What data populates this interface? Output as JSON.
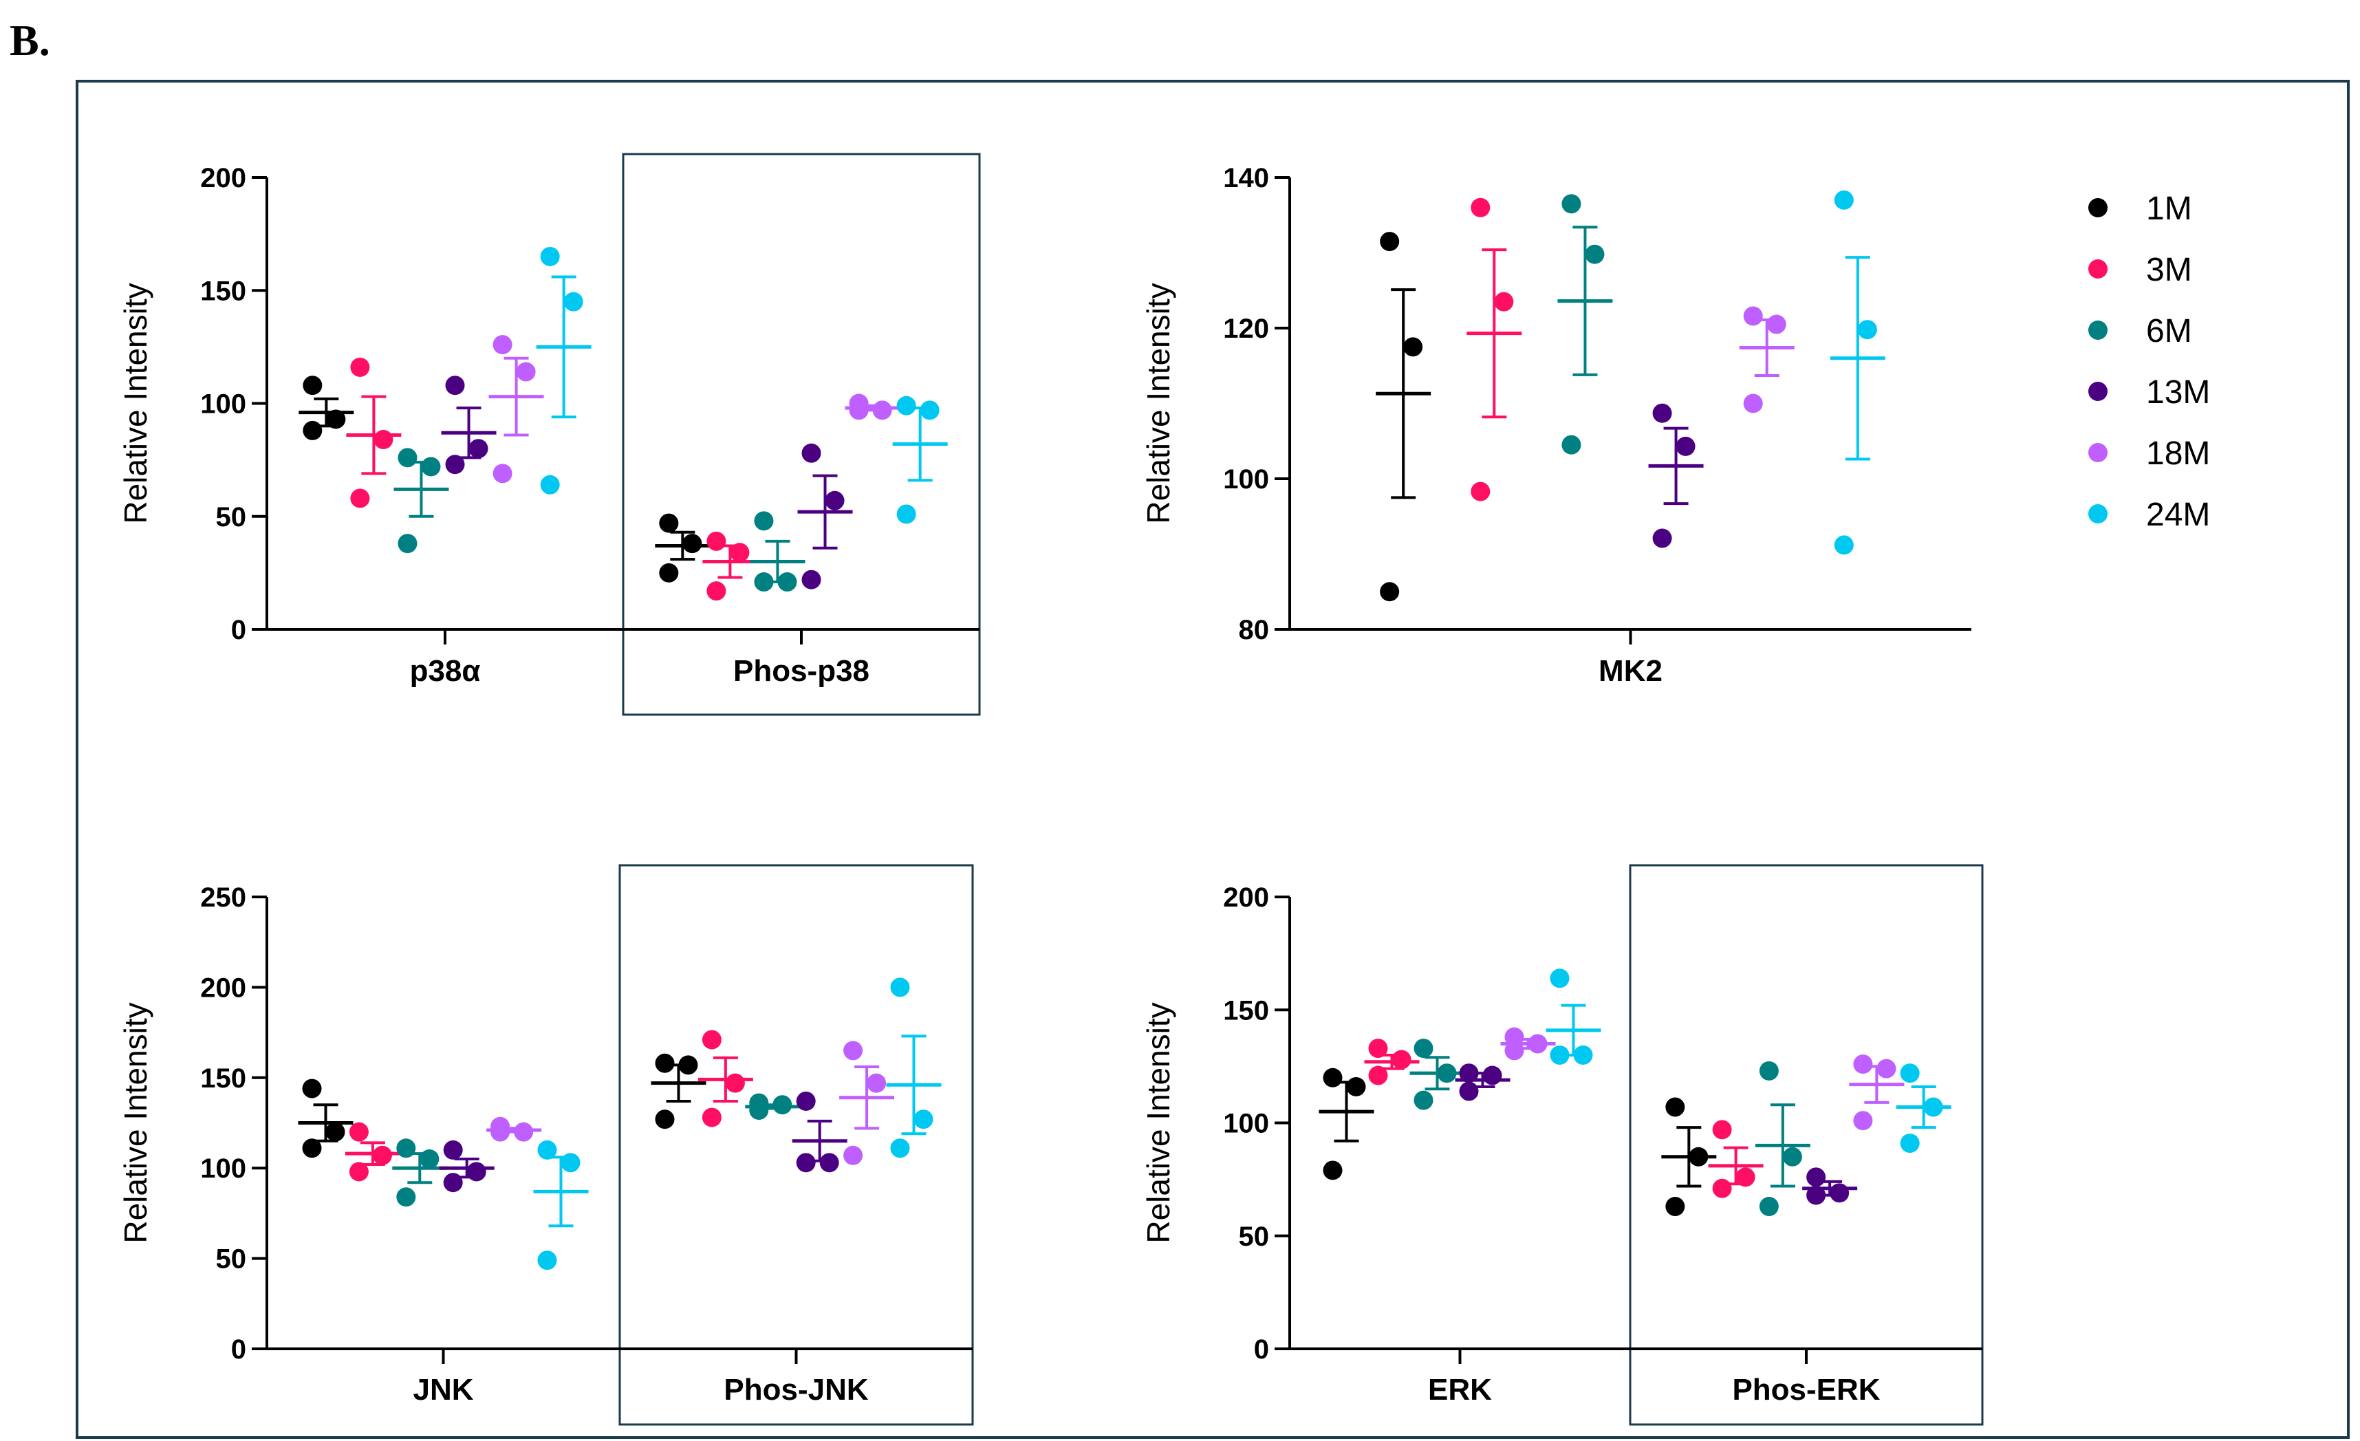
{
  "panel_label": "B.",
  "colors": {
    "1M": "#000000",
    "3M": "#ff0f64",
    "6M": "#008080",
    "13M": "#4b0082",
    "18M": "#bf5fff",
    "24M": "#00c8f0",
    "frame": "#1b3a4b"
  },
  "legend": {
    "placement": "right of MK2 panel",
    "entries": [
      {
        "label": "1M",
        "color": "#000000"
      },
      {
        "label": "3M",
        "color": "#ff0f64"
      },
      {
        "label": "6M",
        "color": "#008080"
      },
      {
        "label": "13M",
        "color": "#4b0082"
      },
      {
        "label": "18M",
        "color": "#bf5fff"
      },
      {
        "label": "24M",
        "color": "#00c8f0"
      }
    ]
  },
  "chart_data": [
    {
      "type": "scatter",
      "ylabel": "Relative Intensity",
      "ylim": [
        0,
        200
      ],
      "yticks": [
        0,
        50,
        100,
        150,
        200
      ],
      "series_order": [
        "1M",
        "3M",
        "6M",
        "13M",
        "18M",
        "24M"
      ],
      "groups": [
        {
          "label": "p38α",
          "boxed": false,
          "series": [
            {
              "name": "1M",
              "points": [
                108,
                93,
                88
              ],
              "mean": 96,
              "sem": 6
            },
            {
              "name": "3M",
              "points": [
                116,
                84,
                58
              ],
              "mean": 86,
              "sem": 17
            },
            {
              "name": "6M",
              "points": [
                76,
                72,
                38
              ],
              "mean": 62,
              "sem": 12
            },
            {
              "name": "13M",
              "points": [
                108,
                80,
                73
              ],
              "mean": 87,
              "sem": 11
            },
            {
              "name": "18M",
              "points": [
                126,
                114,
                69
              ],
              "mean": 103,
              "sem": 17
            },
            {
              "name": "24M",
              "points": [
                165,
                145,
                64
              ],
              "mean": 125,
              "sem": 31
            }
          ]
        },
        {
          "label": "Phos-p38",
          "boxed": true,
          "series": [
            {
              "name": "1M",
              "points": [
                47,
                38,
                25
              ],
              "mean": 37,
              "sem": 6
            },
            {
              "name": "3M",
              "points": [
                39,
                34,
                17
              ],
              "mean": 30,
              "sem": 7
            },
            {
              "name": "6M",
              "points": [
                48,
                21,
                21
              ],
              "mean": 30,
              "sem": 9
            },
            {
              "name": "13M",
              "points": [
                78,
                57,
                22
              ],
              "mean": 52,
              "sem": 16
            },
            {
              "name": "18M",
              "points": [
                100,
                97,
                97
              ],
              "mean": 98,
              "sem": 1
            },
            {
              "name": "24M",
              "points": [
                99,
                97,
                51
              ],
              "mean": 82,
              "sem": 16
            }
          ]
        }
      ]
    },
    {
      "type": "scatter",
      "ylabel": "Relative Intensity",
      "ylim": [
        80,
        140
      ],
      "yticks": [
        80,
        100,
        120,
        140
      ],
      "series_order": [
        "1M",
        "3M",
        "6M",
        "13M",
        "18M",
        "24M"
      ],
      "groups": [
        {
          "label": "MK2",
          "boxed": false,
          "series": [
            {
              "name": "1M",
              "points": [
                131.5,
                117.5,
                85
              ],
              "mean": 111.3,
              "sem": 13.8
            },
            {
              "name": "3M",
              "points": [
                136,
                123.5,
                98.3
              ],
              "mean": 119.3,
              "sem": 11.1
            },
            {
              "name": "6M",
              "points": [
                136.5,
                129.8,
                104.5
              ],
              "mean": 123.6,
              "sem": 9.8
            },
            {
              "name": "13M",
              "points": [
                108.7,
                104.3,
                92.1
              ],
              "mean": 101.7,
              "sem": 5
            },
            {
              "name": "18M",
              "points": [
                121.6,
                120.5,
                110
              ],
              "mean": 117.4,
              "sem": 3.7
            },
            {
              "name": "24M",
              "points": [
                137,
                119.8,
                91.2
              ],
              "mean": 116,
              "sem": 13.4
            }
          ]
        }
      ]
    },
    {
      "type": "scatter",
      "ylabel": "Relative Intensity",
      "ylim": [
        0,
        250
      ],
      "yticks": [
        0,
        50,
        100,
        150,
        200,
        250
      ],
      "series_order": [
        "1M",
        "3M",
        "6M",
        "13M",
        "18M",
        "24M"
      ],
      "groups": [
        {
          "label": "JNK",
          "boxed": false,
          "series": [
            {
              "name": "1M",
              "points": [
                144,
                120,
                111
              ],
              "mean": 125,
              "sem": 10
            },
            {
              "name": "3M",
              "points": [
                120,
                107,
                98
              ],
              "mean": 108,
              "sem": 6
            },
            {
              "name": "6M",
              "points": [
                111,
                105,
                84
              ],
              "mean": 100,
              "sem": 8
            },
            {
              "name": "13M",
              "points": [
                110,
                98,
                92
              ],
              "mean": 100,
              "sem": 5
            },
            {
              "name": "18M",
              "points": [
                123,
                120,
                120
              ],
              "mean": 121,
              "sem": 1
            },
            {
              "name": "24M",
              "points": [
                110,
                103,
                49
              ],
              "mean": 87,
              "sem": 19
            }
          ]
        },
        {
          "label": "Phos-JNK",
          "boxed": true,
          "series": [
            {
              "name": "1M",
              "points": [
                158,
                157,
                127
              ],
              "mean": 147,
              "sem": 10
            },
            {
              "name": "3M",
              "points": [
                171,
                147,
                128
              ],
              "mean": 149,
              "sem": 12
            },
            {
              "name": "6M",
              "points": [
                136,
                135,
                132
              ],
              "mean": 134,
              "sem": 1
            },
            {
              "name": "13M",
              "points": [
                137,
                103,
                103
              ],
              "mean": 115,
              "sem": 11
            },
            {
              "name": "18M",
              "points": [
                165,
                147,
                107
              ],
              "mean": 139,
              "sem": 17
            },
            {
              "name": "24M",
              "points": [
                200,
                127,
                111
              ],
              "mean": 146,
              "sem": 27
            }
          ]
        }
      ]
    },
    {
      "type": "scatter",
      "ylabel": "Relative Intensity",
      "ylim": [
        0,
        200
      ],
      "yticks": [
        0,
        50,
        100,
        150,
        200
      ],
      "series_order": [
        "1M",
        "3M",
        "6M",
        "13M",
        "18M",
        "24M"
      ],
      "groups": [
        {
          "label": "ERK",
          "boxed": false,
          "series": [
            {
              "name": "1M",
              "points": [
                120,
                116,
                79
              ],
              "mean": 105,
              "sem": 13
            },
            {
              "name": "3M",
              "points": [
                133,
                128,
                121
              ],
              "mean": 127,
              "sem": 3
            },
            {
              "name": "6M",
              "points": [
                133,
                122,
                110
              ],
              "mean": 122,
              "sem": 7
            },
            {
              "name": "13M",
              "points": [
                122,
                121,
                114
              ],
              "mean": 119,
              "sem": 3
            },
            {
              "name": "18M",
              "points": [
                138,
                135,
                132
              ],
              "mean": 135,
              "sem": 2
            },
            {
              "name": "24M",
              "points": [
                164,
                130,
                130
              ],
              "mean": 141,
              "sem": 11
            }
          ]
        },
        {
          "label": "Phos-ERK",
          "boxed": true,
          "series": [
            {
              "name": "1M",
              "points": [
                107,
                85,
                63
              ],
              "mean": 85,
              "sem": 13
            },
            {
              "name": "3M",
              "points": [
                97,
                76,
                71
              ],
              "mean": 81,
              "sem": 8
            },
            {
              "name": "6M",
              "points": [
                123,
                85,
                63
              ],
              "mean": 90,
              "sem": 18
            },
            {
              "name": "13M",
              "points": [
                76,
                69,
                68
              ],
              "mean": 71,
              "sem": 3
            },
            {
              "name": "18M",
              "points": [
                126,
                124,
                101
              ],
              "mean": 117,
              "sem": 8
            },
            {
              "name": "24M",
              "points": [
                122,
                107,
                91
              ],
              "mean": 107,
              "sem": 9
            }
          ]
        }
      ]
    }
  ]
}
